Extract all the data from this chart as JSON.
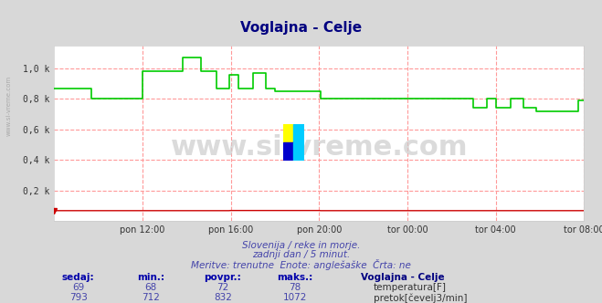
{
  "title": "Voglajna - Celje",
  "title_color": "#000080",
  "bg_color": "#d8d8d8",
  "plot_bg_color": "#ffffff",
  "grid_color": "#ff9999",
  "watermark_text": "www.si-vreme.com",
  "watermark_color": "#c0c0c0",
  "subtitle1": "Slovenija / reke in morje.",
  "subtitle2": "zadnji dan / 5 minut.",
  "subtitle3": "Meritve: trenutne  Enote: anglešaške  Črta: ne",
  "subtitle_color": "#4444aa",
  "xlabel_ticks": [
    "pon 12:00",
    "pon 16:00",
    "pon 20:00",
    "tor 00:00",
    "tor 04:00",
    "tor 08:00"
  ],
  "ytick_labels": [
    "0,2 k",
    "0,4 k",
    "0,6 k",
    "0,8 k",
    "1,0 k"
  ],
  "ytick_values": [
    200,
    400,
    600,
    800,
    1000
  ],
  "ylim": [
    0,
    1150
  ],
  "xlim": [
    0,
    288
  ],
  "x_tick_positions": [
    48,
    96,
    144,
    192,
    240,
    288
  ],
  "footer_labels": [
    "sedaj:",
    "min.:",
    "povpr.:",
    "maks.:"
  ],
  "footer_temp": [
    69,
    68,
    72,
    78
  ],
  "footer_flow": [
    793,
    712,
    832,
    1072
  ],
  "legend_title": "Voglajna - Celje",
  "legend_temp": "temperatura[F]",
  "legend_flow": "pretok[čevelj3/min]",
  "temp_color": "#cc0000",
  "flow_color": "#00cc00",
  "ylabel_color": "#666666",
  "left_text": "www.si-vreme.com",
  "left_text_color": "#aaaaaa"
}
